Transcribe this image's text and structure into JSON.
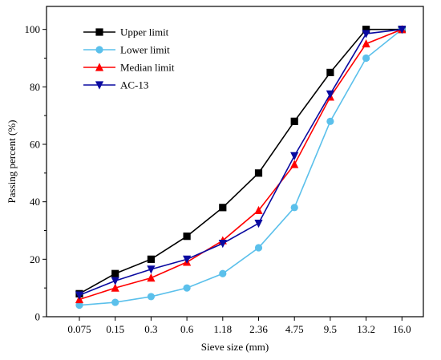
{
  "chart_data": {
    "type": "line",
    "title": "",
    "xlabel": "Sieve size (mm)",
    "ylabel": "Passing percent (%)",
    "categories": [
      "0.075",
      "0.15",
      "0.3",
      "0.6",
      "1.18",
      "2.36",
      "4.75",
      "9.5",
      "13.2",
      "16.0"
    ],
    "ylim": [
      0,
      108
    ],
    "yticks": [
      0,
      20,
      40,
      60,
      80,
      100
    ],
    "grid": false,
    "legend_position": "top-left",
    "series": [
      {
        "name": "Upper limit",
        "color": "#000000",
        "marker": "square",
        "values": [
          8,
          15,
          20,
          28,
          38,
          50,
          68,
          85,
          100,
          100
        ]
      },
      {
        "name": "Lower limit",
        "color": "#5bc0eb",
        "marker": "circle",
        "values": [
          4,
          5,
          7,
          10,
          15,
          24,
          38,
          68,
          90,
          100
        ]
      },
      {
        "name": "Median limit",
        "color": "#ff0000",
        "marker": "triangle-up",
        "values": [
          6,
          10,
          13.5,
          19,
          26.5,
          37,
          53,
          76.5,
          95,
          100
        ]
      },
      {
        "name": "AC-13",
        "color": "#0a0aa0",
        "marker": "triangle-down",
        "values": [
          7.5,
          12.5,
          16.5,
          20,
          25.5,
          32.5,
          56,
          77.5,
          98.5,
          100
        ]
      }
    ]
  }
}
